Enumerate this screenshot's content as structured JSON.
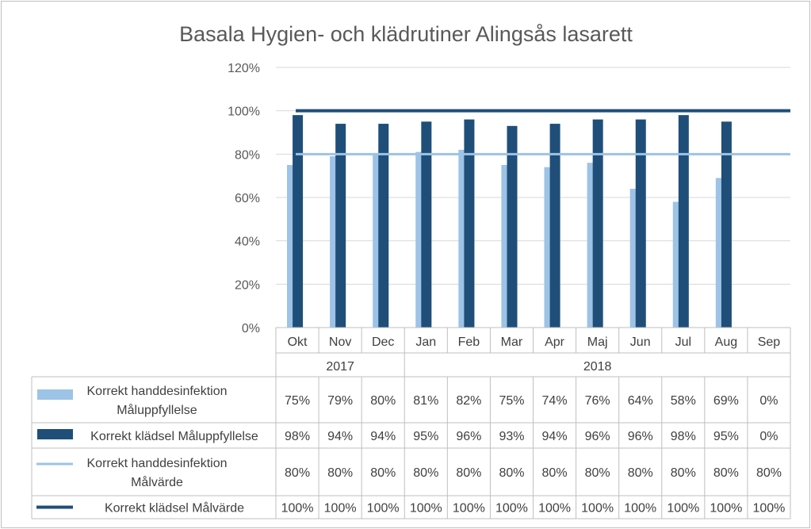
{
  "chart_data": {
    "type": "bar",
    "title": "Basala Hygien- och klädrutiner Alingsås lasarett",
    "categories": [
      "Okt",
      "Nov",
      "Dec",
      "Jan",
      "Feb",
      "Mar",
      "Apr",
      "Maj",
      "Jun",
      "Jul",
      "Aug",
      "Sep"
    ],
    "groups": [
      {
        "label": "2017",
        "start": 0,
        "end": 2
      },
      {
        "label": "2018",
        "start": 3,
        "end": 11
      }
    ],
    "ylim": [
      0,
      120
    ],
    "yticks": [
      "0%",
      "20%",
      "40%",
      "60%",
      "80%",
      "100%",
      "120%"
    ],
    "ytick_values": [
      0,
      20,
      40,
      60,
      80,
      100,
      120
    ],
    "grid": true,
    "legend": "data-table",
    "series": [
      {
        "name": "Korrekt handdesinfektion Måluppfyllelse",
        "label_lines": [
          "Korrekt handdesinfektion",
          "Måluppfyllelse"
        ],
        "kind": "bar",
        "color": "#9dc3e6",
        "values": [
          75,
          79,
          80,
          81,
          82,
          75,
          74,
          76,
          64,
          58,
          69,
          0
        ],
        "table_values": [
          "75%",
          "79%",
          "80%",
          "81%",
          "82%",
          "75%",
          "74%",
          "76%",
          "64%",
          "58%",
          "69%",
          "0%"
        ]
      },
      {
        "name": "Korrekt klädsel Måluppfyllelse",
        "label_lines": [
          "Korrekt klädsel Måluppfyllelse"
        ],
        "kind": "bar",
        "color": "#1f4e79",
        "values": [
          98,
          94,
          94,
          95,
          96,
          93,
          94,
          96,
          96,
          98,
          95,
          0
        ],
        "table_values": [
          "98%",
          "94%",
          "94%",
          "95%",
          "96%",
          "93%",
          "94%",
          "96%",
          "96%",
          "98%",
          "95%",
          "0%"
        ]
      },
      {
        "name": "Korrekt handdesinfektion Målvärde",
        "label_lines": [
          "Korrekt handdesinfektion",
          "Målvärde"
        ],
        "kind": "line",
        "color": "#9dc3e6",
        "values": [
          80,
          80,
          80,
          80,
          80,
          80,
          80,
          80,
          80,
          80,
          80,
          80
        ],
        "table_values": [
          "80%",
          "80%",
          "80%",
          "80%",
          "80%",
          "80%",
          "80%",
          "80%",
          "80%",
          "80%",
          "80%",
          "80%"
        ]
      },
      {
        "name": "Korrekt klädsel Målvärde",
        "label_lines": [
          "Korrekt klädsel Målvärde"
        ],
        "kind": "line",
        "color": "#1f4e79",
        "values": [
          100,
          100,
          100,
          100,
          100,
          100,
          100,
          100,
          100,
          100,
          100,
          100
        ],
        "table_values": [
          "100%",
          "100%",
          "100%",
          "100%",
          "100%",
          "100%",
          "100%",
          "100%",
          "100%",
          "100%",
          "100%",
          "100%"
        ]
      }
    ]
  }
}
